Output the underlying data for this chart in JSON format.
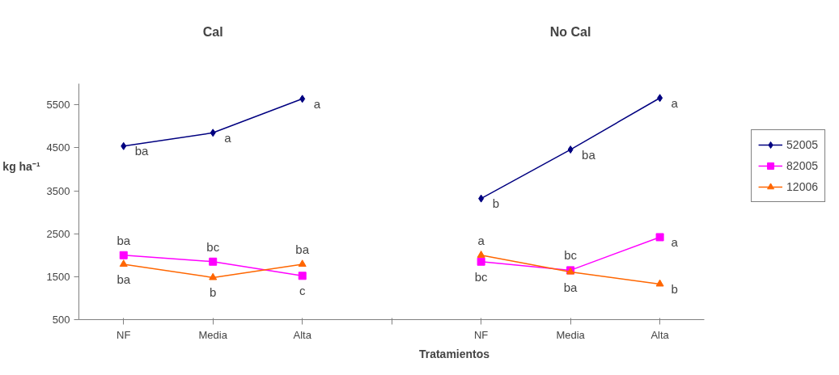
{
  "chart_data": {
    "type": "line",
    "xlabel": "Tratamientos",
    "ylabel": "kg ha⁻¹",
    "categories": [
      "NF",
      "Media",
      "Alta",
      null,
      "NF",
      "Media",
      "Alta"
    ],
    "ylim": [
      500,
      6000
    ],
    "yticks": [
      500,
      1500,
      2500,
      3500,
      4500,
      5500
    ],
    "annotations": [
      "Cal",
      "No Cal"
    ],
    "grid": false,
    "legend": "right",
    "series": [
      {
        "name": "52005",
        "color": "#000080",
        "marker": "diamond",
        "values": [
          4540,
          4850,
          5640,
          null,
          3320,
          4460,
          5660
        ],
        "value_labels": [
          "ba",
          "a",
          "a",
          null,
          "b",
          "ba",
          "a"
        ]
      },
      {
        "name": "82005",
        "color": "#ff00ff",
        "marker": "square",
        "values": [
          2000,
          1850,
          1520,
          null,
          1850,
          1650,
          2420
        ],
        "value_labels": [
          "ba",
          "bc",
          "c",
          null,
          "bc",
          "bc",
          "a"
        ]
      },
      {
        "name": "12006",
        "color": "#ff6600",
        "marker": "triangle",
        "values": [
          1790,
          1480,
          1790,
          null,
          2000,
          1610,
          1330
        ],
        "value_labels": [
          "ba",
          "b",
          "ba",
          null,
          "a",
          "ba",
          "b"
        ]
      }
    ]
  }
}
